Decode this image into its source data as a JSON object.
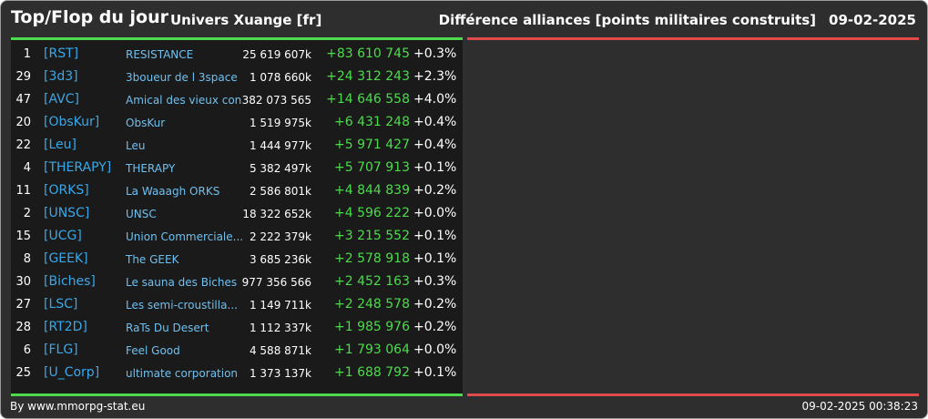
{
  "header": {
    "title": "Top/Flop du jour",
    "universe": "Univers Xuange [fr]",
    "subtitle": "Différence alliances [points militaires construits]",
    "date": "09-02-2025"
  },
  "colors": {
    "top_accent": "#4ddb4d",
    "flop_accent": "#e04a4a",
    "tag": "#3aa8e8",
    "name": "#6fc0f0"
  },
  "rows": [
    {
      "rank": "1",
      "tag": "[RST]",
      "name": "RESISTANCE",
      "points": "25 619 607k",
      "diff": "+83 610 745",
      "pct": "+0.3%"
    },
    {
      "rank": "29",
      "tag": "[3d3]",
      "name": "3boueur de l 3space",
      "points": "1 078 660k",
      "diff": "+24 312 243",
      "pct": "+2.3%"
    },
    {
      "rank": "47",
      "tag": "[AVC]",
      "name": "Amical des vieux con",
      "points": "382 073 565",
      "diff": "+14 646 558",
      "pct": "+4.0%"
    },
    {
      "rank": "20",
      "tag": "[ObsKur]",
      "name": "ObsKur",
      "points": "1 519 975k",
      "diff": "+6 431 248",
      "pct": "+0.4%"
    },
    {
      "rank": "22",
      "tag": "[Leu]",
      "name": "Leu",
      "points": "1 444 977k",
      "diff": "+5 971 427",
      "pct": "+0.4%"
    },
    {
      "rank": "4",
      "tag": "[THERAPY]",
      "name": "THERAPY",
      "points": "5 382 497k",
      "diff": "+5 707 913",
      "pct": "+0.1%"
    },
    {
      "rank": "11",
      "tag": "[ORKS]",
      "name": "La Waaagh ORKS",
      "points": "2 586 801k",
      "diff": "+4 844 839",
      "pct": "+0.2%"
    },
    {
      "rank": "2",
      "tag": "[UNSC]",
      "name": "UNSC",
      "points": "18 322 652k",
      "diff": "+4 596 222",
      "pct": "+0.0%"
    },
    {
      "rank": "15",
      "tag": "[UCG]",
      "name": "Union Commerciale...",
      "points": "2 222 379k",
      "diff": "+3 215 552",
      "pct": "+0.1%"
    },
    {
      "rank": "8",
      "tag": "[GEEK]",
      "name": "The GEEK",
      "points": "3 685 236k",
      "diff": "+2 578 918",
      "pct": "+0.1%"
    },
    {
      "rank": "30",
      "tag": "[Biches]",
      "name": "Le sauna des Biches",
      "points": "977 356 566",
      "diff": "+2 452 163",
      "pct": "+0.3%"
    },
    {
      "rank": "27",
      "tag": "[LSC]",
      "name": "Les semi-croustilla...",
      "points": "1 149 711k",
      "diff": "+2 248 578",
      "pct": "+0.2%"
    },
    {
      "rank": "28",
      "tag": "[RT2D]",
      "name": "RaTs Du Desert",
      "points": "1 112 337k",
      "diff": "+1 985 976",
      "pct": "+0.2%"
    },
    {
      "rank": "6",
      "tag": "[FLG]",
      "name": "Feel Good",
      "points": "4 588 871k",
      "diff": "+1 793 064",
      "pct": "+0.0%"
    },
    {
      "rank": "25",
      "tag": "[U_Corp]",
      "name": "ultimate corporation",
      "points": "1 373 137k",
      "diff": "+1 688 792",
      "pct": "+0.1%"
    }
  ],
  "footer": {
    "credit": "By www.mmorpg-stat.eu",
    "timestamp": "09-02-2025 00:38:23"
  }
}
